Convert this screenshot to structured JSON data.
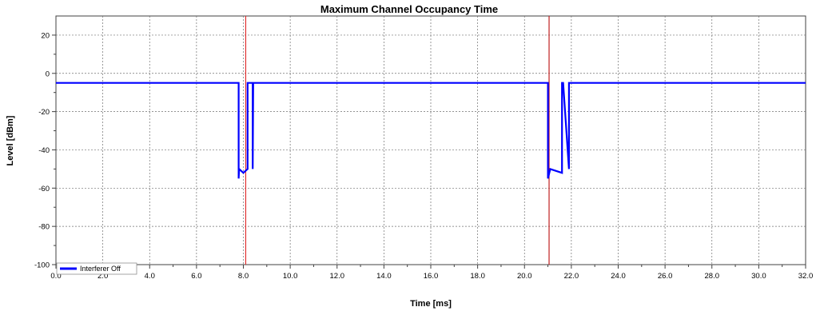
{
  "chart_data": {
    "type": "line",
    "title": "Maximum Channel Occupancy Time",
    "xlabel": "Time [ms]",
    "ylabel": "Level [dBm]",
    "xlim": [
      0,
      32
    ],
    "ylim": [
      -100,
      30
    ],
    "grid": true,
    "legend_position": "bottom-left",
    "x_ticks": [
      "0.0",
      "2.0",
      "4.0",
      "6.0",
      "8.0",
      "10.0",
      "12.0",
      "14.0",
      "16.0",
      "18.0",
      "20.0",
      "22.0",
      "24.0",
      "26.0",
      "28.0",
      "30.0",
      "32.0"
    ],
    "y_ticks": [
      "20",
      "0",
      "-20",
      "-40",
      "-60",
      "-80",
      "-100"
    ],
    "series": [
      {
        "name": "Interferer Off",
        "color": "#0000ff",
        "x": [
          0,
          7.8,
          7.8,
          7.82,
          8.0,
          8.18,
          8.18,
          8.4,
          8.4,
          8.42,
          21.0,
          21.0,
          21.1,
          21.6,
          21.6,
          21.65,
          21.9,
          21.9,
          21.92,
          32
        ],
        "y": [
          -5,
          -5,
          -55,
          -50,
          -52,
          -50,
          -5,
          -5,
          -50,
          -5,
          -5,
          -55,
          -50,
          -52,
          -5,
          -5,
          -50,
          -5,
          -5,
          -5
        ]
      }
    ],
    "markers": [
      {
        "x": 8.1,
        "color": "#e03030"
      },
      {
        "x": 21.05,
        "color": "#c02020"
      }
    ]
  }
}
